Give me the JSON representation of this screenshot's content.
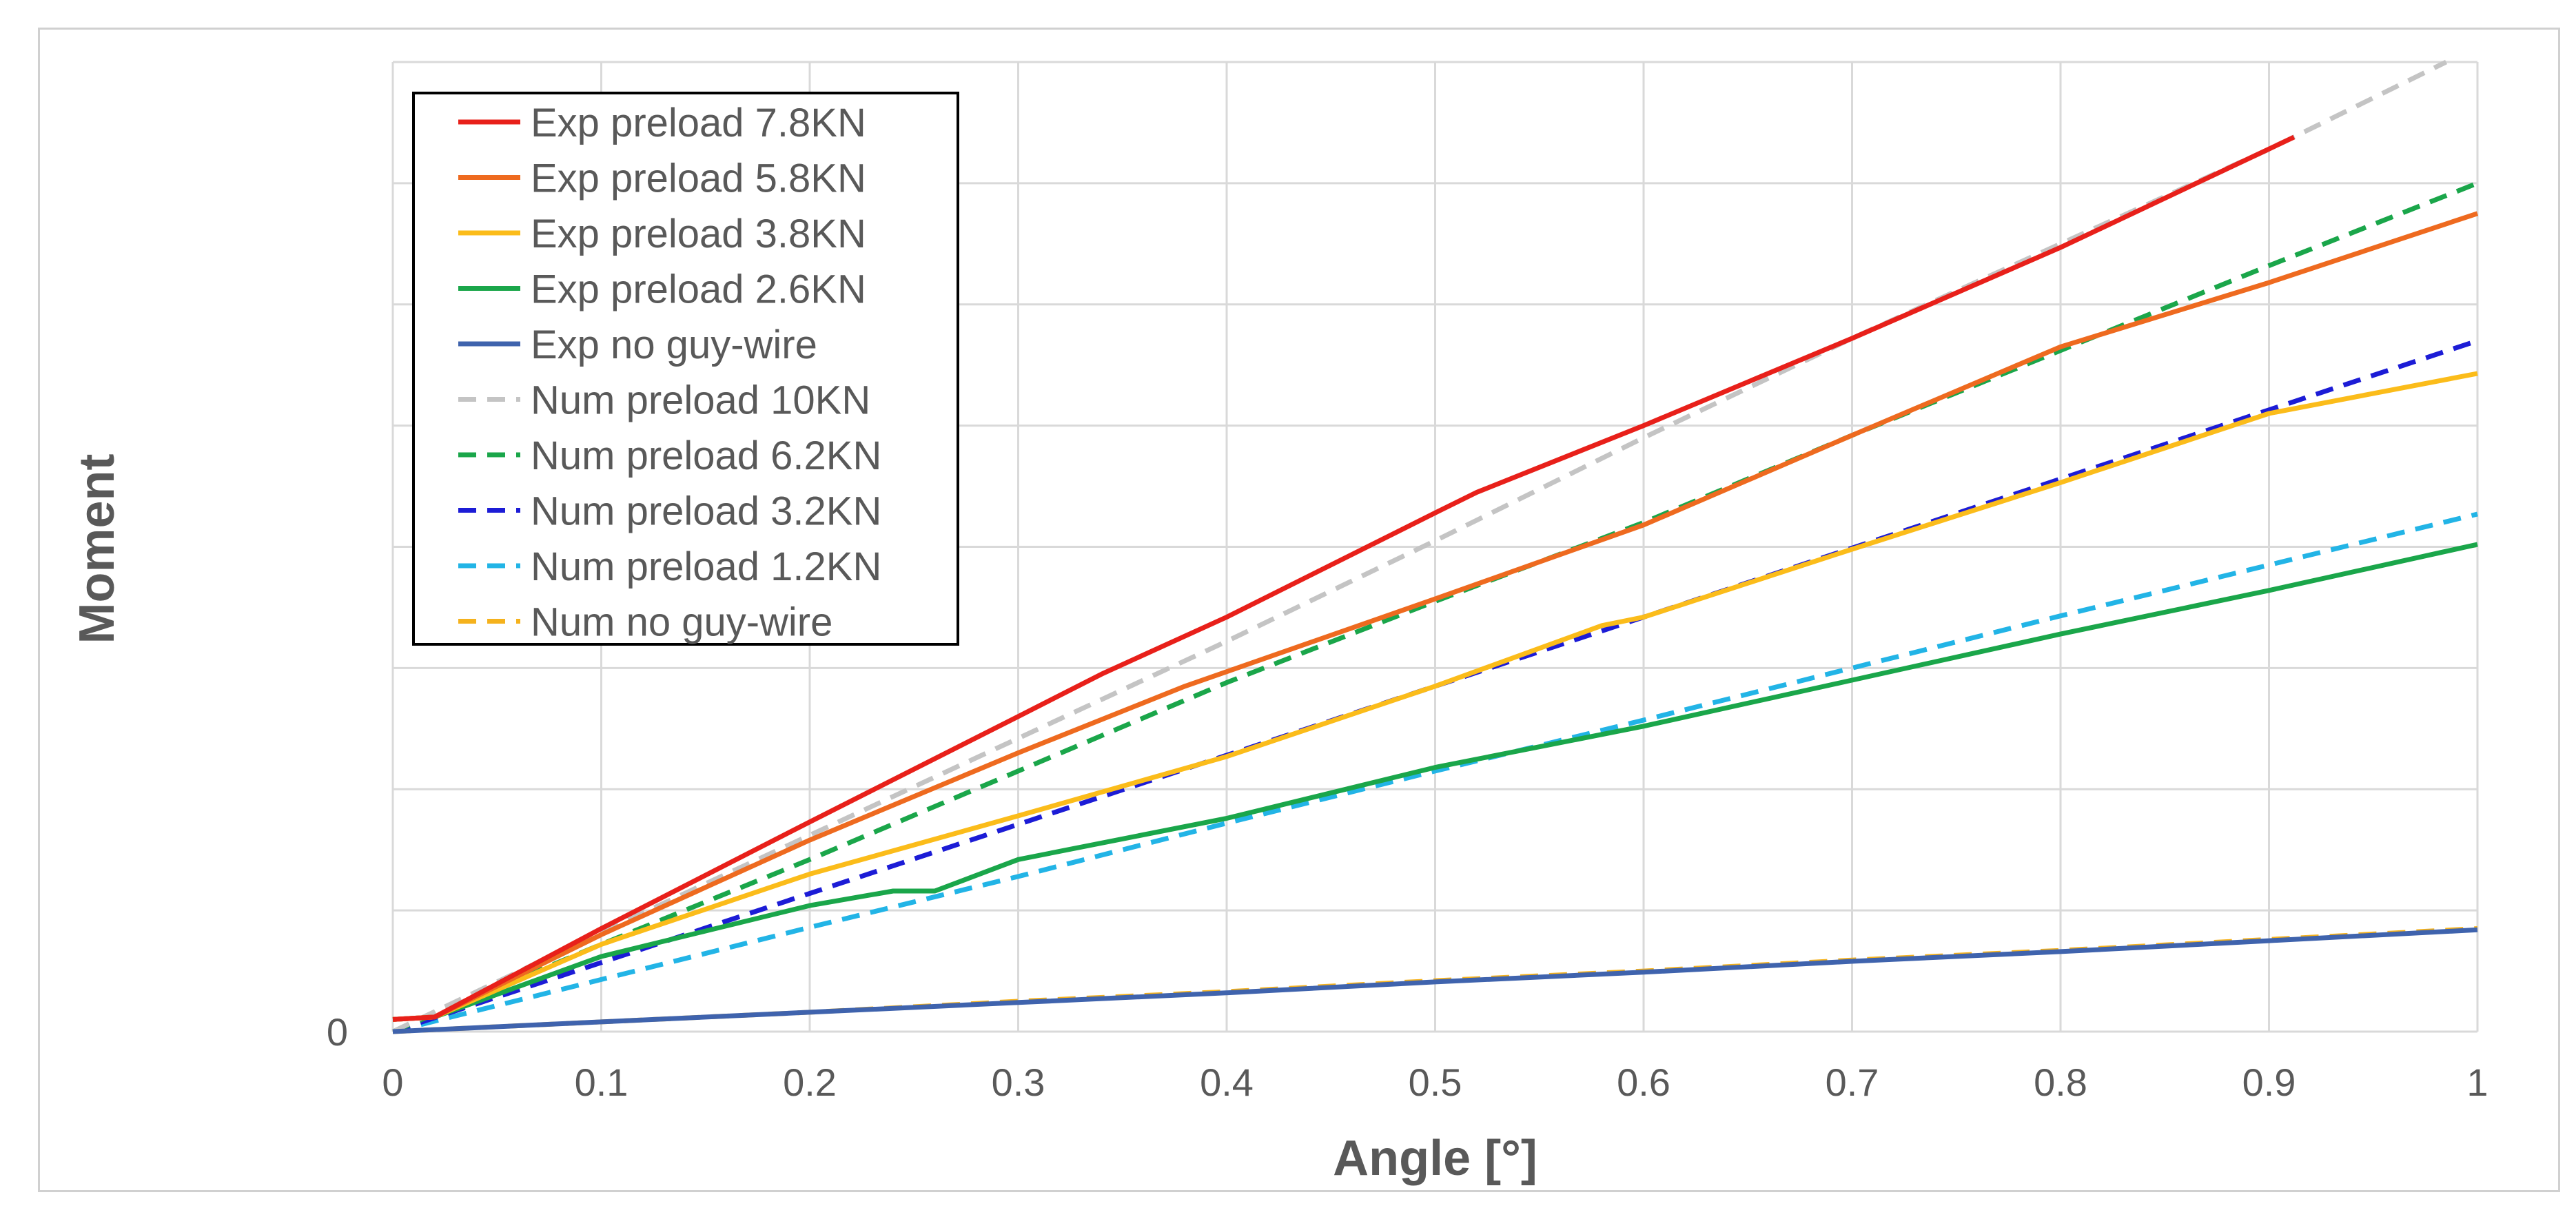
{
  "chart_data": {
    "type": "line",
    "title": "",
    "xlabel": "Angle [°]",
    "ylabel": "Moment",
    "xlim": [
      0,
      1
    ],
    "ylim": [
      0,
      8
    ],
    "grid": true,
    "legend_position": "top-left",
    "x_ticks": [
      "0",
      "0.1",
      "0.2",
      "0.3",
      "0.4",
      "0.5",
      "0.6",
      "0.7",
      "0.8",
      "0.9",
      "1"
    ],
    "y_ticks": [
      "0"
    ],
    "series": [
      {
        "name": "Exp preload 7.8KN",
        "color": "#e8201a",
        "dash": "solid",
        "x": [
          0,
          0.02,
          0.1,
          0.2,
          0.3,
          0.34,
          0.4,
          0.5,
          0.52,
          0.6,
          0.7,
          0.8,
          0.912
        ],
        "y": [
          0.1,
          0.12,
          0.85,
          1.73,
          2.6,
          2.95,
          3.42,
          4.28,
          4.45,
          5.0,
          5.72,
          6.47,
          7.38
        ]
      },
      {
        "name": "Exp preload 5.8KN",
        "color": "#ee6a1f",
        "dash": "solid",
        "x": [
          0,
          0.02,
          0.1,
          0.2,
          0.3,
          0.38,
          0.4,
          0.5,
          0.6,
          0.7,
          0.8,
          0.9,
          1.0
        ],
        "y": [
          0.1,
          0.12,
          0.8,
          1.58,
          2.3,
          2.85,
          2.97,
          3.57,
          4.18,
          4.92,
          5.65,
          6.18,
          6.75
        ]
      },
      {
        "name": "Exp preload 3.8KN",
        "color": "#fbbc1a",
        "dash": "solid",
        "x": [
          0,
          0.02,
          0.1,
          0.2,
          0.3,
          0.4,
          0.5,
          0.58,
          0.6,
          0.7,
          0.8,
          0.9,
          1.0
        ],
        "y": [
          0.1,
          0.12,
          0.72,
          1.3,
          1.78,
          2.27,
          2.85,
          3.35,
          3.42,
          3.98,
          4.53,
          5.1,
          5.43
        ]
      },
      {
        "name": "Exp preload 2.6KN",
        "color": "#1aa64a",
        "dash": "solid",
        "x": [
          0,
          0.02,
          0.1,
          0.2,
          0.24,
          0.26,
          0.3,
          0.4,
          0.5,
          0.6,
          0.7,
          0.8,
          0.9,
          1.0
        ],
        "y": [
          0.1,
          0.12,
          0.62,
          1.04,
          1.16,
          1.16,
          1.42,
          1.76,
          2.18,
          2.52,
          2.9,
          3.28,
          3.64,
          4.02
        ]
      },
      {
        "name": "Exp no guy-wire",
        "color": "#3f63ad",
        "dash": "solid",
        "x": [
          0,
          0.1,
          0.2,
          0.3,
          0.4,
          0.5,
          0.6,
          0.7,
          0.8,
          0.9,
          1.0
        ],
        "y": [
          0,
          0.08,
          0.16,
          0.24,
          0.32,
          0.41,
          0.49,
          0.58,
          0.66,
          0.75,
          0.84
        ]
      },
      {
        "name": "Num preload 10KN",
        "color": "#c4c4c4",
        "dash": "dashed",
        "x": [
          0,
          0.1,
          0.2,
          0.3,
          0.4,
          0.5,
          0.6,
          0.7,
          0.8,
          0.9,
          0.985
        ],
        "y": [
          0,
          0.82,
          1.62,
          2.42,
          3.22,
          4.05,
          4.9,
          5.72,
          6.5,
          7.28,
          8.0
        ]
      },
      {
        "name": "Num preload 6.2KN",
        "color": "#1aa64a",
        "dash": "dashed",
        "x": [
          0,
          0.1,
          0.2,
          0.3,
          0.4,
          0.5,
          0.6,
          0.7,
          0.8,
          0.9,
          1.0
        ],
        "y": [
          0,
          0.72,
          1.42,
          2.15,
          2.88,
          3.55,
          4.2,
          4.92,
          5.62,
          6.32,
          7.0
        ]
      },
      {
        "name": "Num preload 3.2KN",
        "color": "#1c1cd6",
        "dash": "dashed",
        "x": [
          0,
          0.1,
          0.2,
          0.3,
          0.4,
          0.5,
          0.6,
          0.7,
          0.8,
          0.9,
          1.0
        ],
        "y": [
          0,
          0.57,
          1.14,
          1.71,
          2.28,
          2.85,
          3.42,
          3.99,
          4.56,
          5.13,
          5.7
        ]
      },
      {
        "name": "Num preload 1.2KN",
        "color": "#22b4e6",
        "dash": "dashed",
        "x": [
          0,
          0.1,
          0.2,
          0.3,
          0.4,
          0.5,
          0.6,
          0.7,
          0.8,
          0.9,
          1.0
        ],
        "y": [
          0,
          0.43,
          0.86,
          1.28,
          1.72,
          2.15,
          2.57,
          3.0,
          3.43,
          3.85,
          4.27
        ]
      },
      {
        "name": "Num no guy-wire",
        "color": "#f5b21d",
        "dash": "dashed",
        "x": [
          0,
          0.1,
          0.2,
          0.3,
          0.4,
          0.5,
          0.6,
          0.7,
          0.8,
          0.9,
          1.0
        ],
        "y": [
          0,
          0.08,
          0.16,
          0.25,
          0.33,
          0.42,
          0.5,
          0.59,
          0.67,
          0.76,
          0.85
        ]
      }
    ]
  }
}
